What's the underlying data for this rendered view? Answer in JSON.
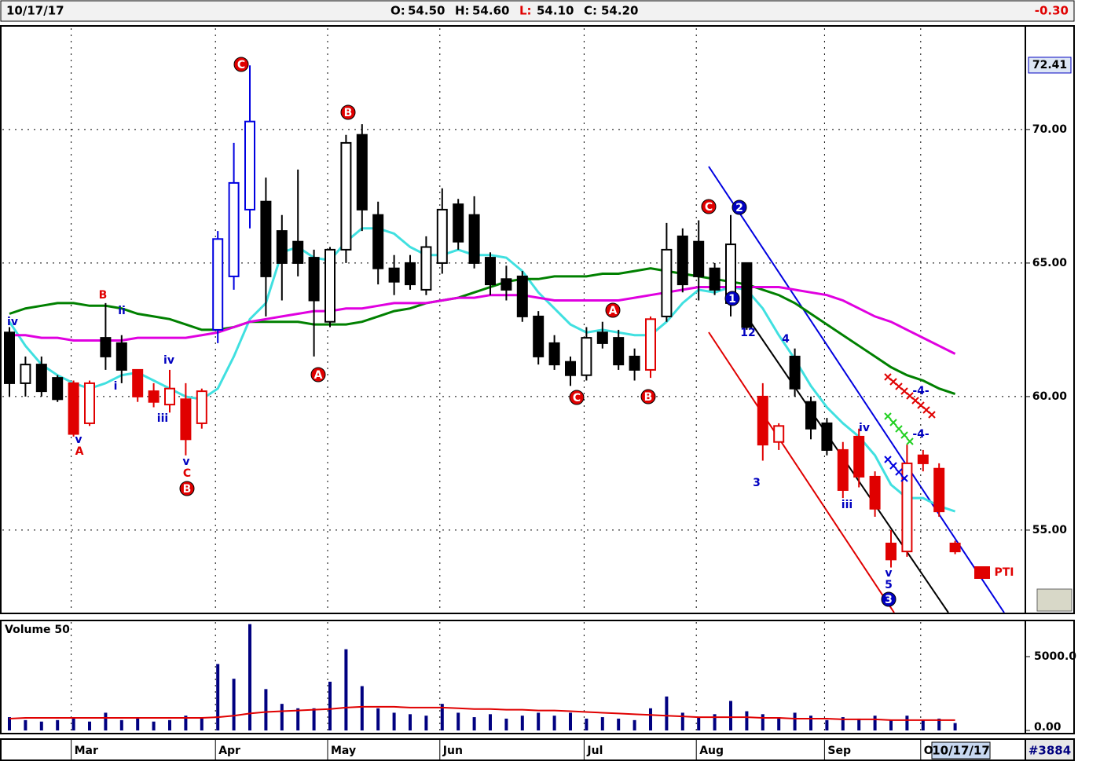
{
  "header": {
    "date": "10/17/17",
    "quote": [
      {
        "label": "O:",
        "value": "54.50"
      },
      {
        "label": "H:",
        "value": "54.60"
      },
      {
        "label": "L:",
        "value": "54.10"
      },
      {
        "label": "C:",
        "value": "54.20"
      }
    ],
    "change": "-0.30"
  },
  "chart_data": [
    {
      "type": "candlestick",
      "categories": [
        null,
        null,
        null,
        null,
        "Mar",
        null,
        null,
        null,
        null,
        null,
        null,
        null,
        null,
        "Apr",
        null,
        null,
        null,
        null,
        null,
        null,
        "May",
        null,
        null,
        null,
        null,
        null,
        null,
        "Jun",
        null,
        null,
        null,
        null,
        null,
        null,
        null,
        null,
        "Jul",
        null,
        null,
        null,
        null,
        null,
        null,
        "Aug",
        null,
        null,
        null,
        null,
        null,
        null,
        null,
        "Sep",
        null,
        null,
        null,
        null,
        null,
        "O",
        null,
        null
      ],
      "open": [
        62.4,
        60.5,
        61.2,
        60.7,
        60.5,
        59.0,
        62.2,
        62.0,
        61.0,
        60.2,
        59.7,
        59.9,
        59.0,
        62.5,
        64.5,
        67.0,
        67.3,
        66.2,
        65.8,
        65.2,
        62.8,
        65.5,
        69.8,
        66.8,
        64.8,
        65.0,
        64.0,
        65.0,
        67.2,
        66.8,
        65.2,
        64.4,
        64.5,
        63.0,
        62.0,
        61.3,
        60.8,
        62.4,
        62.2,
        61.5,
        61.0,
        63.0,
        66.0,
        65.8,
        64.8,
        63.5,
        65.0,
        60.0,
        58.3,
        61.5,
        59.8,
        59.0,
        58.0,
        58.5,
        57.0,
        54.5,
        54.2,
        57.8,
        57.3,
        54.5
      ],
      "high": [
        62.6,
        61.5,
        61.5,
        60.8,
        60.6,
        60.6,
        63.5,
        62.3,
        61.0,
        60.5,
        61.0,
        60.5,
        60.3,
        66.2,
        69.5,
        72.4,
        68.2,
        66.8,
        68.5,
        65.5,
        65.6,
        69.8,
        70.2,
        67.3,
        65.3,
        65.3,
        66.0,
        67.8,
        67.4,
        67.5,
        65.4,
        64.9,
        64.7,
        63.2,
        62.3,
        61.5,
        62.6,
        62.8,
        62.5,
        61.8,
        63.0,
        66.5,
        66.3,
        66.6,
        65.0,
        66.8,
        65.0,
        60.5,
        59.0,
        61.8,
        60.0,
        59.2,
        58.3,
        58.8,
        57.2,
        55.0,
        58.2,
        58.0,
        57.5,
        54.6
      ],
      "low": [
        60.0,
        60.0,
        60.0,
        59.8,
        58.5,
        58.9,
        61.0,
        60.5,
        59.8,
        59.6,
        59.4,
        57.8,
        58.8,
        62.0,
        64.0,
        66.3,
        63.0,
        63.6,
        64.5,
        61.5,
        62.6,
        65.0,
        66.2,
        64.2,
        63.8,
        64.0,
        63.8,
        64.6,
        65.5,
        64.8,
        63.8,
        63.6,
        62.8,
        61.2,
        61.0,
        60.4,
        60.6,
        61.8,
        61.0,
        60.6,
        60.7,
        62.8,
        63.9,
        63.6,
        63.8,
        63.0,
        62.5,
        57.6,
        58.0,
        60.0,
        58.4,
        57.8,
        56.2,
        56.6,
        55.5,
        53.6,
        54.0,
        57.2,
        55.5,
        54.1
      ],
      "close": [
        60.5,
        61.2,
        60.2,
        59.9,
        58.6,
        60.5,
        61.5,
        61.0,
        60.0,
        59.8,
        60.3,
        58.4,
        60.2,
        65.9,
        68.0,
        70.3,
        64.5,
        65.0,
        65.0,
        63.6,
        65.5,
        69.5,
        67.0,
        64.8,
        64.3,
        64.2,
        65.6,
        67.0,
        65.8,
        65.0,
        64.2,
        64.0,
        63.0,
        61.5,
        61.2,
        60.8,
        62.2,
        62.0,
        61.2,
        61.0,
        62.9,
        65.5,
        64.2,
        64.5,
        64.0,
        65.7,
        62.6,
        58.2,
        58.9,
        60.3,
        58.8,
        58.0,
        56.5,
        57.0,
        55.8,
        53.9,
        57.5,
        57.5,
        55.7,
        54.2
      ],
      "colors": [
        "#000000",
        "#000000",
        "#000000",
        "#000000",
        "#e00000",
        "#e00000",
        "#000000",
        "#000000",
        "#e00000",
        "#e00000",
        "#e00000",
        "#e00000",
        "#e00000",
        "#0000e0",
        "#0000e0",
        "#0000e0",
        "#000000",
        "#000000",
        "#000000",
        "#000000",
        "#000000",
        "#000000",
        "#000000",
        "#000000",
        "#000000",
        "#000000",
        "#000000",
        "#000000",
        "#000000",
        "#000000",
        "#000000",
        "#000000",
        "#000000",
        "#000000",
        "#000000",
        "#000000",
        "#000000",
        "#000000",
        "#000000",
        "#000000",
        "#e00000",
        "#000000",
        "#000000",
        "#000000",
        "#000000",
        "#000000",
        "#000000",
        "#e00000",
        "#e00000",
        "#000000",
        "#000000",
        "#000000",
        "#e00000",
        "#e00000",
        "#e00000",
        "#e00000",
        "#e00000",
        "#e00000",
        "#e00000",
        "#e00000"
      ],
      "lines": [
        {
          "color": "#40e0e0",
          "values": [
            62.8,
            61.9,
            61.2,
            60.8,
            60.5,
            60.3,
            60.5,
            60.8,
            60.9,
            60.6,
            60.3,
            60.0,
            59.9,
            60.3,
            61.5,
            62.9,
            63.5,
            65.4,
            65.6,
            65.2,
            65.1,
            65.8,
            66.3,
            66.3,
            66.1,
            65.6,
            65.3,
            65.3,
            65.5,
            65.3,
            65.3,
            65.2,
            64.7,
            63.9,
            63.3,
            62.7,
            62.4,
            62.5,
            62.4,
            62.3,
            62.3,
            62.8,
            63.5,
            64.0,
            63.9,
            64.1,
            64.0,
            63.3,
            62.3,
            61.4,
            60.4,
            59.6,
            59.0,
            58.5,
            57.8,
            56.7,
            56.2,
            56.2,
            55.9,
            55.7
          ]
        },
        {
          "color": "#008000",
          "values": [
            63.1,
            63.3,
            63.4,
            63.5,
            63.5,
            63.4,
            63.4,
            63.3,
            63.1,
            63.0,
            62.9,
            62.7,
            62.5,
            62.5,
            62.6,
            62.8,
            62.8,
            62.8,
            62.8,
            62.7,
            62.7,
            62.7,
            62.8,
            63.0,
            63.2,
            63.3,
            63.5,
            63.6,
            63.7,
            63.9,
            64.1,
            64.3,
            64.4,
            64.4,
            64.5,
            64.5,
            64.5,
            64.6,
            64.6,
            64.7,
            64.8,
            64.7,
            64.6,
            64.5,
            64.4,
            64.3,
            64.2,
            64.0,
            63.8,
            63.5,
            63.1,
            62.7,
            62.3,
            61.9,
            61.5,
            61.1,
            60.8,
            60.6,
            60.3,
            60.1
          ]
        },
        {
          "color": "#e000e0",
          "values": [
            62.3,
            62.3,
            62.2,
            62.2,
            62.1,
            62.1,
            62.1,
            62.1,
            62.2,
            62.2,
            62.2,
            62.2,
            62.3,
            62.4,
            62.6,
            62.8,
            62.9,
            63.0,
            63.1,
            63.2,
            63.2,
            63.3,
            63.3,
            63.4,
            63.5,
            63.5,
            63.5,
            63.6,
            63.7,
            63.7,
            63.8,
            63.8,
            63.8,
            63.7,
            63.6,
            63.6,
            63.6,
            63.6,
            63.6,
            63.7,
            63.8,
            63.9,
            64.0,
            64.1,
            64.1,
            64.1,
            64.1,
            64.1,
            64.1,
            64.0,
            63.9,
            63.8,
            63.6,
            63.3,
            63.0,
            62.8,
            62.5,
            62.2,
            61.9,
            61.6
          ]
        }
      ],
      "ylim": [
        51.91,
        73.82
      ],
      "yticks": [
        {
          "value": 55,
          "label": "55.00"
        },
        {
          "value": 60,
          "label": "60.00"
        },
        {
          "value": 65,
          "label": "65.00"
        },
        {
          "value": 70,
          "label": "70.00"
        }
      ],
      "price_marker": {
        "value": 72.41,
        "label": "72.41"
      },
      "grid": true,
      "annotations": [
        {
          "text": "iv",
          "color": "#0000c0"
        },
        {
          "text": "B",
          "color": "#e00000"
        },
        {
          "text": "ii",
          "color": "#0000c0"
        },
        {
          "text": "i",
          "color": "#0000c0"
        },
        {
          "text": "v",
          "color": "#0000c0"
        },
        {
          "text": "A",
          "color": "#e00000"
        },
        {
          "text": "iv",
          "color": "#0000c0"
        },
        {
          "text": "iii",
          "color": "#0000c0"
        },
        {
          "text": "v",
          "color": "#0000c0"
        },
        {
          "text": "C",
          "color": "#e00000"
        },
        {
          "text": "B",
          "color": "#e00000",
          "circled": true
        },
        {
          "text": "C",
          "color": "#e00000",
          "circled": true
        },
        {
          "text": "A",
          "color": "#e00000",
          "circled": true
        },
        {
          "text": "B",
          "color": "#e00000",
          "circled": true
        },
        {
          "text": "C",
          "color": "#e00000",
          "circled": true
        },
        {
          "text": "A",
          "color": "#e00000",
          "circled": true
        },
        {
          "text": "B",
          "color": "#e00000",
          "circled": true
        },
        {
          "text": "C",
          "color": "#e00000",
          "circled": true
        },
        {
          "text": "2",
          "color": "#0000c0",
          "circled": true
        },
        {
          "text": "1",
          "color": "#0000c0",
          "circled": true
        },
        {
          "text": "12",
          "color": "#0000c0"
        },
        {
          "text": "3",
          "color": "#0000c0"
        },
        {
          "text": "4",
          "color": "#0000c0"
        },
        {
          "text": "iv",
          "color": "#0000c0"
        },
        {
          "text": "iii",
          "color": "#0000c0"
        },
        {
          "text": "v",
          "color": "#0000c0"
        },
        {
          "text": "5",
          "color": "#0000c0"
        },
        {
          "text": "3",
          "color": "#0000c0",
          "circled": true
        },
        {
          "text": "-4-",
          "color": "#0000c0"
        },
        {
          "text": "-4-",
          "color": "#0000c0"
        },
        {
          "text": "PTI",
          "color": "#e00000"
        }
      ]
    },
    {
      "type": "bar",
      "title": "Volume 50",
      "color": "#000080",
      "values": [
        900,
        700,
        600,
        700,
        800,
        600,
        1200,
        700,
        800,
        600,
        700,
        1000,
        900,
        4500,
        3500,
        7200,
        2800,
        1800,
        1500,
        1500,
        3300,
        5500,
        3000,
        1500,
        1200,
        1100,
        1000,
        1800,
        1200,
        900,
        1100,
        800,
        1000,
        1200,
        1000,
        1200,
        800,
        900,
        800,
        700,
        1500,
        2300,
        1200,
        900,
        1100,
        2000,
        1300,
        1100,
        900,
        1200,
        1000,
        700,
        900,
        800,
        1000,
        700,
        1000,
        700,
        800,
        500
      ],
      "lines": [
        {
          "color": "#e00000",
          "values": [
            800,
            850,
            850,
            850,
            850,
            850,
            850,
            850,
            850,
            850,
            850,
            850,
            850,
            900,
            1000,
            1150,
            1250,
            1300,
            1350,
            1400,
            1450,
            1550,
            1600,
            1600,
            1600,
            1550,
            1550,
            1550,
            1500,
            1450,
            1450,
            1400,
            1400,
            1350,
            1350,
            1300,
            1250,
            1200,
            1150,
            1100,
            1050,
            1000,
            950,
            900,
            900,
            900,
            900,
            850,
            850,
            800,
            800,
            800,
            750,
            750,
            750,
            700,
            700,
            700,
            700,
            700
          ]
        }
      ],
      "ylim": [
        0,
        7340
      ],
      "yticks": [
        {
          "value": 0,
          "label": "0.00"
        },
        {
          "value": 5000,
          "label": "5000.0"
        }
      ]
    }
  ],
  "footer": {
    "date": "10/17/17",
    "id": "#3884"
  }
}
